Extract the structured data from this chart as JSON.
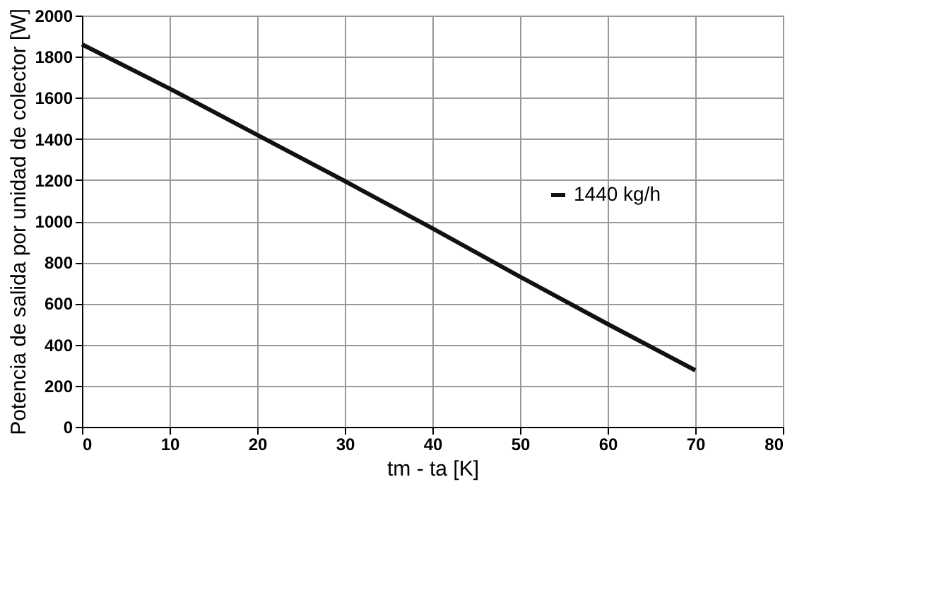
{
  "chart_data": {
    "type": "line",
    "xlabel": "tm - ta [K]",
    "ylabel": "Potencia de salida por unidad de colector [W]",
    "x": [
      0,
      10,
      20,
      30,
      40,
      50,
      60,
      70
    ],
    "series": [
      {
        "name": "1440 kg/h",
        "color": "#111111",
        "values": [
          1860,
          1645,
          1420,
          1195,
          965,
          730,
          500,
          275
        ]
      }
    ],
    "xlim": [
      0,
      80
    ],
    "xticks": [
      0,
      10,
      20,
      30,
      40,
      50,
      60,
      70,
      80
    ],
    "ylim": [
      0,
      2000
    ],
    "yticks": [
      0,
      200,
      400,
      600,
      800,
      1000,
      1200,
      1400,
      1600,
      1800,
      2000
    ],
    "grid": true,
    "legend": "right",
    "marker": "none",
    "line_style": "solid"
  }
}
